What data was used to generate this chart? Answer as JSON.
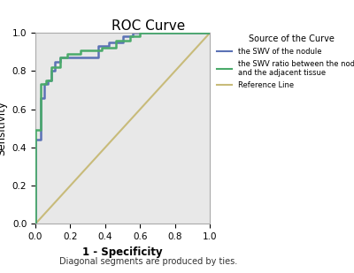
{
  "title": "ROC Curve",
  "xlabel": "1 - Specificity",
  "ylabel": "Sensitivity",
  "footnote": "Diagonal segments are produced by ties.",
  "legend_title": "Source of the Curve",
  "legend_labels": [
    "the SWV of the nodule",
    "the SWV ratio between the nodule\nand the adjacent tissue",
    "Reference Line"
  ],
  "curve1_color": "#5b72b5",
  "curve2_color": "#4aaa6a",
  "ref_color": "#c8bb7a",
  "background_color": "#e8e8e8",
  "curve1_x": [
    0.0,
    0.0,
    0.03,
    0.03,
    0.05,
    0.05,
    0.07,
    0.07,
    0.09,
    0.09,
    0.11,
    0.11,
    0.14,
    0.14,
    0.18,
    0.18,
    0.24,
    0.24,
    0.3,
    0.3,
    0.36,
    0.36,
    0.42,
    0.42,
    0.5,
    0.5,
    0.56,
    0.56,
    0.62,
    0.62,
    0.72,
    0.72,
    1.0
  ],
  "curve1_y": [
    0.0,
    0.44,
    0.44,
    0.66,
    0.66,
    0.73,
    0.73,
    0.75,
    0.75,
    0.8,
    0.8,
    0.85,
    0.85,
    0.87,
    0.87,
    0.87,
    0.87,
    0.87,
    0.87,
    0.87,
    0.87,
    0.93,
    0.93,
    0.95,
    0.95,
    0.98,
    0.98,
    1.0,
    1.0,
    1.0,
    1.0,
    1.0,
    1.0
  ],
  "curve2_x": [
    0.0,
    0.0,
    0.03,
    0.03,
    0.06,
    0.06,
    0.09,
    0.09,
    0.14,
    0.14,
    0.18,
    0.18,
    0.26,
    0.26,
    0.3,
    0.3,
    0.38,
    0.38,
    0.46,
    0.46,
    0.54,
    0.54,
    0.6,
    0.6,
    0.68,
    0.68,
    0.82,
    0.82,
    1.0
  ],
  "curve2_y": [
    0.0,
    0.49,
    0.49,
    0.73,
    0.73,
    0.75,
    0.75,
    0.82,
    0.82,
    0.87,
    0.87,
    0.89,
    0.89,
    0.91,
    0.91,
    0.91,
    0.91,
    0.92,
    0.92,
    0.96,
    0.96,
    0.98,
    0.98,
    1.0,
    1.0,
    1.0,
    1.0,
    1.0,
    1.0
  ],
  "xlim": [
    0.0,
    1.0
  ],
  "ylim": [
    0.0,
    1.0
  ],
  "xticks": [
    0.0,
    0.2,
    0.4,
    0.6,
    0.8,
    1.0
  ],
  "yticks": [
    0.0,
    0.2,
    0.4,
    0.6,
    0.8,
    1.0
  ]
}
